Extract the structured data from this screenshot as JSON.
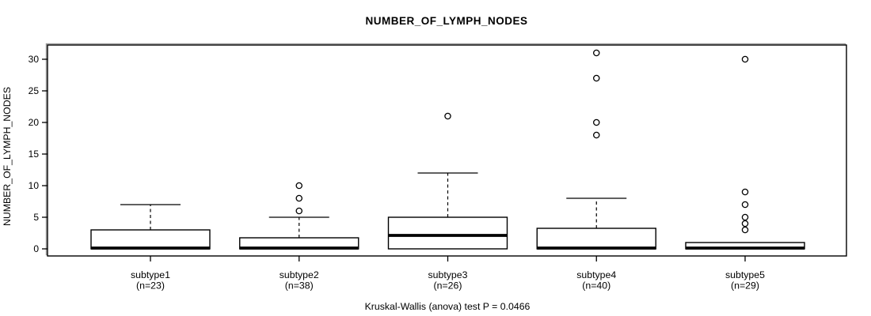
{
  "chart_data": {
    "type": "boxplot",
    "title": "NUMBER_OF_LYMPH_NODES",
    "ylabel": "NUMBER_OF_LYMPH_NODES",
    "xlabel": "",
    "caption": "Kruskal-Wallis (anova) test P = 0.0466",
    "ylim": [
      -1.125,
      32.25
    ],
    "yticks": [
      0,
      5,
      10,
      15,
      20,
      25,
      30
    ],
    "grid": false,
    "legend": null,
    "groups": [
      {
        "label": "subtype1",
        "n_label": "(n=23)",
        "n": 23,
        "stats": {
          "whisker_low": 0,
          "q1": 0,
          "median": 0,
          "q3": 3,
          "whisker_high": 7
        },
        "outliers": []
      },
      {
        "label": "subtype2",
        "n_label": "(n=38)",
        "n": 38,
        "stats": {
          "whisker_low": 0,
          "q1": 0,
          "median": 0,
          "q3": 1.75,
          "whisker_high": 5
        },
        "outliers": [
          6,
          8,
          10
        ]
      },
      {
        "label": "subtype3",
        "n_label": "(n=26)",
        "n": 26,
        "stats": {
          "whisker_low": 0,
          "q1": 0,
          "median": 2,
          "q3": 5,
          "whisker_high": 12
        },
        "outliers": [
          21
        ]
      },
      {
        "label": "subtype4",
        "n_label": "(n=40)",
        "n": 40,
        "stats": {
          "whisker_low": 0,
          "q1": 0,
          "median": 0,
          "q3": 3.25,
          "whisker_high": 8
        },
        "outliers": [
          18,
          20,
          27,
          31
        ]
      },
      {
        "label": "subtype5",
        "n_label": "(n=29)",
        "n": 29,
        "stats": {
          "whisker_low": 0,
          "q1": 0,
          "median": 0,
          "q3": 1,
          "whisker_high": 1
        },
        "outliers": [
          3,
          4,
          5,
          7,
          9,
          30
        ]
      }
    ],
    "colors": {
      "stroke": "#000000",
      "box_fill": "#ffffff",
      "shadow": "#9a9a9a",
      "background": "#ffffff"
    }
  }
}
